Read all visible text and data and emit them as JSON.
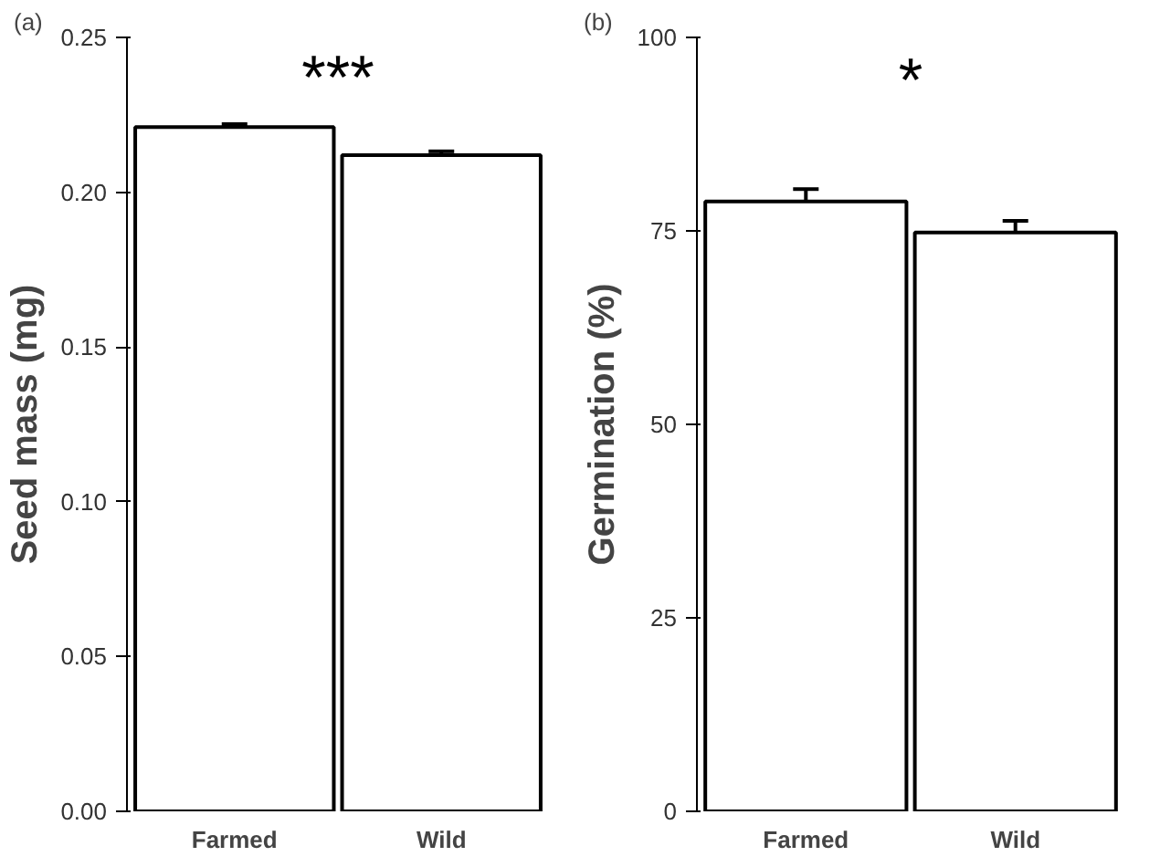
{
  "chart_data": [
    {
      "type": "bar",
      "ylabel": "Seed mass (mg)",
      "categories": [
        "Farmed",
        "Wild"
      ],
      "values": [
        0.221,
        0.212
      ],
      "errors": [
        0.001,
        0.0012
      ],
      "colors": [
        "#ffffff",
        "#ffffff"
      ],
      "ylim": [
        0,
        0.25
      ],
      "yticks": [
        {
          "value": 0,
          "label": "0.00"
        },
        {
          "value": 0.05,
          "label": "0.05"
        },
        {
          "value": 0.1,
          "label": "0.10"
        },
        {
          "value": 0.15,
          "label": "0.15"
        },
        {
          "value": 0.2,
          "label": "0.20"
        },
        {
          "value": 0.25,
          "label": "0.25"
        }
      ],
      "grid": false,
      "annotations": [
        "(a)",
        "***"
      ]
    },
    {
      "type": "bar",
      "ylabel": "Germination (%)",
      "categories": [
        "Farmed",
        "Wild"
      ],
      "values": [
        78.8,
        74.8
      ],
      "errors": [
        1.6,
        1.5
      ],
      "colors": [
        "#ffffff",
        "#ffffff"
      ],
      "ylim": [
        0,
        100
      ],
      "yticks": [
        0,
        25,
        50,
        75,
        100
      ],
      "grid": false,
      "annotations": [
        "(b)",
        "*"
      ]
    }
  ]
}
